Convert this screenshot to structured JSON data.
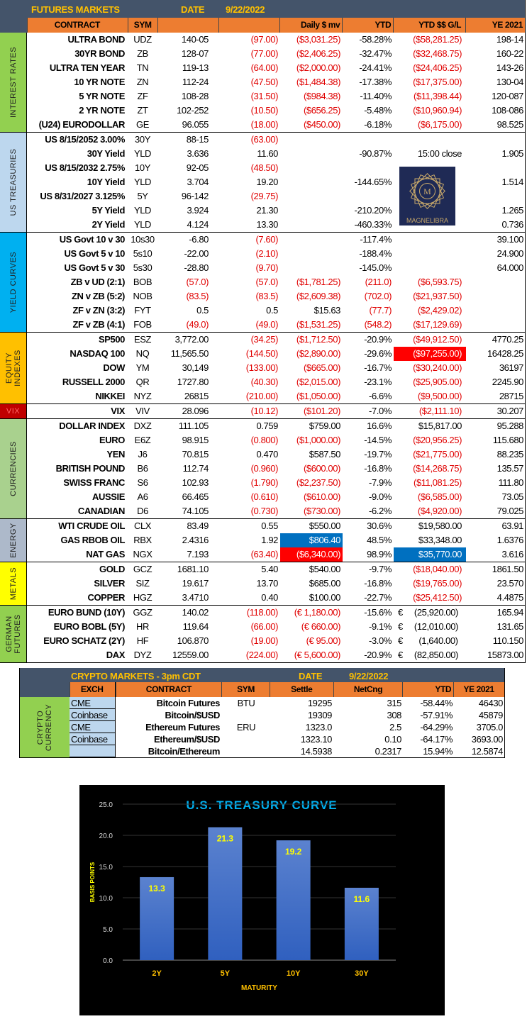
{
  "futures": {
    "title": "FUTURES MARKETS",
    "date_label": "DATE",
    "date": "9/22/2022",
    "columns": [
      "CONTRACT",
      "SYM",
      "",
      "",
      "Daily $ mv",
      "YTD",
      "YTD $$ G/L",
      "YE 2021"
    ],
    "colors": {
      "header_bg": "#44546a",
      "column_bg": "#ed7d31",
      "title_text": "#ffc000",
      "negative": "#e00000",
      "highlight_red": "#ff0000",
      "highlight_blue": "#0070c0"
    },
    "sections": [
      {
        "label": "INTEREST RATES",
        "color": "#92d050",
        "rows": [
          {
            "contract": "ULTRA BOND",
            "sym": "UDZ",
            "last": "140-05",
            "chg": "(97.00)",
            "daily": "($3,031.25)",
            "ytd": "-58.28%",
            "ytd_gl": "($58,281.25)",
            "ye": "198-14"
          },
          {
            "contract": "30YR BOND",
            "sym": "ZB",
            "last": "128-07",
            "chg": "(77.00)",
            "daily": "($2,406.25)",
            "ytd": "-32.47%",
            "ytd_gl": "($32,468.75)",
            "ye": "160-22"
          },
          {
            "contract": "ULTRA TEN YEAR",
            "sym": "TN",
            "last": "119-13",
            "chg": "(64.00)",
            "daily": "($2,000.00)",
            "ytd": "-24.41%",
            "ytd_gl": "($24,406.25)",
            "ye": "143-26"
          },
          {
            "contract": "10 YR NOTE",
            "sym": "ZN",
            "last": "112-24",
            "chg": "(47.50)",
            "daily": "($1,484.38)",
            "ytd": "-17.38%",
            "ytd_gl": "($17,375.00)",
            "ye": "130-04"
          },
          {
            "contract": "5 YR NOTE",
            "sym": "ZF",
            "last": "108-28",
            "chg": "(31.50)",
            "daily": "($984.38)",
            "ytd": "-11.40%",
            "ytd_gl": "($11,398.44)",
            "ye": "120-087"
          },
          {
            "contract": "2 YR NOTE",
            "sym": "ZT",
            "last": "102-252",
            "chg": "(10.50)",
            "daily": "($656.25)",
            "ytd": "-5.48%",
            "ytd_gl": "($10,960.94)",
            "ye": "108-086"
          },
          {
            "contract": "(U24) EURODOLLAR",
            "sym": "GE",
            "last": "96.055",
            "chg": "(18.00)",
            "daily": "($450.00)",
            "ytd": "-6.18%",
            "ytd_gl": "($6,175.00)",
            "ye": "98.525"
          }
        ]
      },
      {
        "label": "US TREASURIES",
        "color": "#bdd7ee",
        "rows": [
          {
            "contract": "US 8/15/2052 3.00%",
            "sym": "30Y",
            "last": "88-15",
            "chg": "(63.00)",
            "daily": "",
            "ytd": "",
            "ytd_gl": "",
            "ye": ""
          },
          {
            "contract": "30Y Yield",
            "sym": "YLD",
            "last": "3.636",
            "chg": "11.60",
            "daily": "",
            "ytd": "-90.87%",
            "ytd_gl": "15:00 close",
            "ye": "1.905"
          },
          {
            "contract": "US 8/15/2032 2.75%",
            "sym": "10Y",
            "last": "92-05",
            "chg": "(48.50)",
            "daily": "",
            "ytd": "",
            "ytd_gl": "",
            "ye": ""
          },
          {
            "contract": "10Y Yield",
            "sym": "YLD",
            "last": "3.704",
            "chg": "19.20",
            "daily": "",
            "ytd": "-144.65%",
            "ytd_gl": "",
            "ye": "1.514"
          },
          {
            "contract": "US 8/31/2027 3.125%",
            "sym": "5Y",
            "last": "96-142",
            "chg": "(29.75)",
            "daily": "",
            "ytd": "",
            "ytd_gl": "",
            "ye": ""
          },
          {
            "contract": "5Y Yield",
            "sym": "YLD",
            "last": "3.924",
            "chg": "21.30",
            "daily": "",
            "ytd": "-210.20%",
            "ytd_gl": "",
            "ye": "1.265"
          },
          {
            "contract": "2Y Yield",
            "sym": "YLD",
            "last": "4.124",
            "chg": "13.30",
            "daily": "",
            "ytd": "-460.33%",
            "ytd_gl": "",
            "ye": "0.736"
          }
        ]
      },
      {
        "label": "YIELD CURVES",
        "color": "#00b0f0",
        "rows": [
          {
            "contract": "US Govt 10 v 30",
            "sym": "10s30",
            "last": "-6.80",
            "chg": "(7.60)",
            "daily": "",
            "ytd": "-117.4%",
            "ytd_gl": "",
            "ye": "39.100"
          },
          {
            "contract": "US Govt 5 v 10",
            "sym": "5s10",
            "last": "-22.00",
            "chg": "(2.10)",
            "daily": "",
            "ytd": "-188.4%",
            "ytd_gl": "",
            "ye": "24.900"
          },
          {
            "contract": "US Govt 5 v 30",
            "sym": "5s30",
            "last": "-28.80",
            "chg": "(9.70)",
            "daily": "",
            "ytd": "-145.0%",
            "ytd_gl": "",
            "ye": "64.000"
          },
          {
            "contract": "ZB v UD (2:1)",
            "sym": "BOB",
            "last": "(57.0)",
            "chg": "(57.0)",
            "daily": "($1,781.25)",
            "ytd": "(211.0)",
            "ytd_gl": "($6,593.75)",
            "ye": ""
          },
          {
            "contract": "ZN v ZB (5:2)",
            "sym": "NOB",
            "last": "(83.5)",
            "chg": "(83.5)",
            "daily": "($2,609.38)",
            "ytd": "(702.0)",
            "ytd_gl": "($21,937.50)",
            "ye": ""
          },
          {
            "contract": "ZF v ZN (3:2)",
            "sym": "FYT",
            "last": "0.5",
            "chg": "0.5",
            "daily": "$15.63",
            "ytd": "(77.7)",
            "ytd_gl": "($2,429.02)",
            "ye": ""
          },
          {
            "contract": "ZF v ZB (4:1)",
            "sym": "FOB",
            "last": "(49.0)",
            "chg": "(49.0)",
            "daily": "($1,531.25)",
            "ytd": "(548.2)",
            "ytd_gl": "($17,129.69)",
            "ye": ""
          }
        ]
      },
      {
        "label": "EQUITY INDEXES",
        "color": "#ffc000",
        "rows": [
          {
            "contract": "SP500",
            "sym": "ESZ",
            "last": "3,772.00",
            "chg": "(34.25)",
            "daily": "($1,712.50)",
            "ytd": "-20.9%",
            "ytd_gl": "($49,912.50)",
            "ye": "4770.25"
          },
          {
            "contract": "NASDAQ 100",
            "sym": "NQ",
            "last": "11,565.50",
            "chg": "(144.50)",
            "daily": "($2,890.00)",
            "ytd": "-29.6%",
            "ytd_gl": "($97,255.00)",
            "ye": "16428.25",
            "highlight": {
              "ytd_gl": "#ff0000"
            }
          },
          {
            "contract": "DOW",
            "sym": "YM",
            "last": "30,149",
            "chg": "(133.00)",
            "daily": "($665.00)",
            "ytd": "-16.7%",
            "ytd_gl": "($30,240.00)",
            "ye": "36197"
          },
          {
            "contract": "RUSSELL 2000",
            "sym": "QR",
            "last": "1727.80",
            "chg": "(40.30)",
            "daily": "($2,015.00)",
            "ytd": "-23.1%",
            "ytd_gl": "($25,905.00)",
            "ye": "2245.90"
          },
          {
            "contract": "NIKKEI",
            "sym": "NYZ",
            "last": "26815",
            "chg": "(210.00)",
            "daily": "($1,050.00)",
            "ytd": "-6.6%",
            "ytd_gl": "($9,500.00)",
            "ye": "28715"
          }
        ]
      },
      {
        "label": "VIX",
        "color": "#c00000",
        "rows": [
          {
            "contract": "VIX",
            "sym": "VIV",
            "last": "28.096",
            "chg": "(10.12)",
            "daily": "($101.20)",
            "ytd": "-7.0%",
            "ytd_gl": "($2,111.10)",
            "ye": "30.207"
          }
        ]
      },
      {
        "label": "CURRENCIES",
        "color": "#a9d18e",
        "rows": [
          {
            "contract": "DOLLAR INDEX",
            "sym": "DXZ",
            "last": "111.105",
            "chg": "0.759",
            "daily": "$759.00",
            "ytd": "16.6%",
            "ytd_gl": "$15,817.00",
            "ye": "95.288"
          },
          {
            "contract": "EURO",
            "sym": "E6Z",
            "last": "98.915",
            "chg": "(0.800)",
            "daily": "($1,000.00)",
            "ytd": "-14.5%",
            "ytd_gl": "($20,956.25)",
            "ye": "115.680"
          },
          {
            "contract": "YEN",
            "sym": "J6",
            "last": "70.815",
            "chg": "0.470",
            "daily": "$587.50",
            "ytd": "-19.7%",
            "ytd_gl": "($21,775.00)",
            "ye": "88.235"
          },
          {
            "contract": "BRITISH POUND",
            "sym": "B6",
            "last": "112.74",
            "chg": "(0.960)",
            "daily": "($600.00)",
            "ytd": "-16.8%",
            "ytd_gl": "($14,268.75)",
            "ye": "135.57"
          },
          {
            "contract": "SWISS FRANC",
            "sym": "S6",
            "last": "102.93",
            "chg": "(1.790)",
            "daily": "($2,237.50)",
            "ytd": "-7.9%",
            "ytd_gl": "($11,081.25)",
            "ye": "111.80"
          },
          {
            "contract": "AUSSIE",
            "sym": "A6",
            "last": "66.465",
            "chg": "(0.610)",
            "daily": "($610.00)",
            "ytd": "-9.0%",
            "ytd_gl": "($6,585.00)",
            "ye": "73.05"
          },
          {
            "contract": "CANADIAN",
            "sym": "D6",
            "last": "74.105",
            "chg": "(0.730)",
            "daily": "($730.00)",
            "ytd": "-6.2%",
            "ytd_gl": "($4,920.00)",
            "ye": "79.025"
          }
        ]
      },
      {
        "label": "ENERGY",
        "color": "#adb9ca",
        "rows": [
          {
            "contract": "WTI CRUDE OIL",
            "sym": "CLX",
            "last": "83.49",
            "chg": "0.55",
            "daily": "$550.00",
            "ytd": "30.6%",
            "ytd_gl": "$19,580.00",
            "ye": "63.91"
          },
          {
            "contract": "GAS RBOB OIL",
            "sym": "RBX",
            "last": "2.4316",
            "chg": "1.92",
            "daily": "$806.40",
            "ytd": "48.5%",
            "ytd_gl": "$33,348.00",
            "ye": "1.6376",
            "highlight": {
              "daily": "#0070c0"
            }
          },
          {
            "contract": "NAT GAS",
            "sym": "NGX",
            "last": "7.193",
            "chg": "(63.40)",
            "daily": "($6,340.00)",
            "ytd": "98.9%",
            "ytd_gl": "$35,770.00",
            "ye": "3.616",
            "highlight": {
              "daily": "#ff0000",
              "ytd_gl": "#0070c0"
            }
          }
        ]
      },
      {
        "label": "METALS",
        "color": "#ffff00",
        "rows": [
          {
            "contract": "GOLD",
            "sym": "GCZ",
            "last": "1681.10",
            "chg": "5.40",
            "daily": "$540.00",
            "ytd": "-9.7%",
            "ytd_gl": "($18,040.00)",
            "ye": "1861.50"
          },
          {
            "contract": "SILVER",
            "sym": "SIZ",
            "last": "19.617",
            "chg": "13.70",
            "daily": "$685.00",
            "ytd": "-16.8%",
            "ytd_gl": "($19,765.00)",
            "ye": "23.570"
          },
          {
            "contract": "COPPER",
            "sym": "HGZ",
            "last": "3.4710",
            "chg": "0.40",
            "daily": "$100.00",
            "ytd": "-22.7%",
            "ytd_gl": "($25,412.50)",
            "ye": "4.4875"
          }
        ]
      },
      {
        "label": "GERMAN FUTURES",
        "color": "#92d050",
        "rows": [
          {
            "contract": "EURO BUND (10Y)",
            "sym": "GGZ",
            "last": "140.02",
            "chg": "(118.00)",
            "daily": "(€ 1,180.00)",
            "ytd": "-15.6%",
            "ytd_gl": "€     (25,920.00)",
            "ye": "165.94"
          },
          {
            "contract": "EURO BOBL (5Y)",
            "sym": "HR",
            "last": "119.64",
            "chg": "(66.00)",
            "daily": "(€ 660.00)",
            "ytd": "-9.1%",
            "ytd_gl": "€     (12,010.00)",
            "ye": "131.65"
          },
          {
            "contract": "EURO SCHATZ (2Y)",
            "sym": "HF",
            "last": "106.870",
            "chg": "(19.00)",
            "daily": "(€ 95.00)",
            "ytd": "-3.0%",
            "ytd_gl": "€       (1,640.00)",
            "ye": "110.150"
          },
          {
            "contract": "DAX",
            "sym": "DYZ",
            "last": "12559.00",
            "chg": "(224.00)",
            "daily": "(€ 5,600.00)",
            "ytd": "-20.9%",
            "ytd_gl": "€     (82,850.00)",
            "ye": "15873.00"
          }
        ]
      }
    ],
    "logo_text": "MAGNELIBRA"
  },
  "crypto": {
    "title": "CRYPTO MARKETS - 3pm CDT",
    "date_label": "DATE",
    "date": "9/22/2022",
    "section_label": "CRYPTO CURRENCY",
    "section_color": "#92d050",
    "columns": [
      "EXCH",
      "CONTRACT",
      "SYM",
      "Settle",
      "NetCng",
      "YTD",
      "YE 2021"
    ],
    "rows": [
      {
        "exch": "CME",
        "contract": "Bitcoin Futures",
        "sym": "BTU",
        "settle": "19295",
        "net": "315",
        "ytd": "-58.44%",
        "ye": "46430"
      },
      {
        "exch": "Coinbase",
        "contract": "Bitcoin/$USD",
        "sym": "",
        "settle": "19309",
        "net": "308",
        "ytd": "-57.91%",
        "ye": "45879"
      },
      {
        "exch": "CME",
        "contract": "Ethereum Futures",
        "sym": "ERU",
        "settle": "1323.0",
        "net": "2.5",
        "ytd": "-64.29%",
        "ye": "3705.0"
      },
      {
        "exch": "Coinbase",
        "contract": "Ethereum/$USD",
        "sym": "",
        "settle": "1323.10",
        "net": "0.10",
        "ytd": "-64.17%",
        "ye": "3693.00"
      },
      {
        "exch": "",
        "contract": "Bitcoin/Ethereum",
        "sym": "",
        "settle": "14.5938",
        "net": "0.2317",
        "ytd": "15.94%",
        "ye": "12.5874"
      }
    ]
  },
  "chart_data": {
    "type": "bar",
    "title": "U.S. TREASURY  CURVE",
    "xlabel": "MATURITY",
    "ylabel": "BASIS POINTS",
    "categories": [
      "2Y",
      "5Y",
      "10Y",
      "30Y"
    ],
    "values": [
      13.3,
      21.3,
      19.2,
      11.6
    ],
    "data_labels": [
      "13.3",
      "21.3",
      "19.2",
      "11.6"
    ],
    "ylim": [
      0,
      25
    ],
    "yticks": [
      "0.0",
      "5.0",
      "10.0",
      "15.0",
      "20.0",
      "25.0"
    ],
    "grid": true,
    "colors": {
      "background": "#000000",
      "bar": "#4472c4",
      "title": "#00b0f0",
      "labels": "#ffc000",
      "data_labels": "#ffff00"
    }
  }
}
